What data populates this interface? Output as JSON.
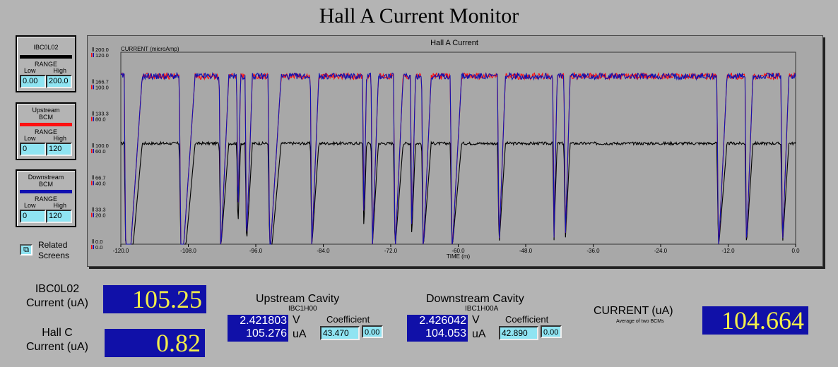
{
  "title": "Hall A Current Monitor",
  "legends": [
    {
      "name": "IBC0L02",
      "color": "#000000",
      "range_label": "RANGE",
      "low_label": "Low",
      "high_label": "High",
      "low": "0.00",
      "high": "200.0"
    },
    {
      "name": "Upstream\nBCM",
      "color": "#ff1010",
      "range_label": "RANGE",
      "low_label": "Low",
      "high_label": "High",
      "low": "0",
      "high": "120"
    },
    {
      "name": "Downstream\nBCM",
      "color": "#1010b0",
      "range_label": "RANGE",
      "low_label": "Low",
      "high_label": "High",
      "low": "0",
      "high": "120"
    }
  ],
  "related": {
    "label_line1": "Related",
    "label_line2": "Screens"
  },
  "chart": {
    "title": "Hall A Current"
  },
  "chart_data": {
    "type": "line",
    "title": "Hall A Current",
    "ylabel": "CURRENT (microAmp)",
    "xlabel": "TIME (m)",
    "xlim": [
      -120.0,
      0.0
    ],
    "x_ticks": [
      "-120.0",
      "-108.0",
      "-96.0",
      "-84.0",
      "-72.0",
      "-60.0",
      "-48.0",
      "-36.0",
      "-24.0",
      "-12.0",
      "0.0"
    ],
    "y_ticks_black": [
      "200.0",
      "166.7",
      "133.3",
      "100.0",
      "66.7",
      "33.3",
      "0.0"
    ],
    "y_ticks_colored": [
      "120.0",
      "100.0",
      "80.0",
      "60.0",
      "40.0",
      "20.0",
      "0.0"
    ],
    "series": [
      {
        "name": "IBC0L02",
        "color": "#000000",
        "on_value": 105,
        "off_value": 0,
        "ylim": [
          0,
          200
        ]
      },
      {
        "name": "Upstream BCM",
        "color": "#ff1010",
        "on_value": 105,
        "off_value": 0,
        "ylim": [
          0,
          120
        ]
      },
      {
        "name": "Downstream BCM",
        "color": "#1010b0",
        "on_value": 105,
        "off_value": 0,
        "ylim": [
          0,
          120
        ]
      }
    ],
    "trips": [
      [
        -119.4,
        -116.2
      ],
      [
        -109.6,
        -106.8
      ],
      [
        -102.5,
        -100.8
      ],
      [
        -99.4,
        -98.7
      ],
      [
        -97.9,
        -96.6
      ],
      [
        -93.8,
        -91.5
      ],
      [
        -86.3,
        -84.8
      ],
      [
        -77.0,
        -76.3
      ],
      [
        -75.5,
        -74.2
      ],
      [
        -71.5,
        -69.8
      ],
      [
        -68.5,
        -67.6
      ],
      [
        -66.5,
        -64.8
      ],
      [
        -61.4,
        -59.4
      ],
      [
        -53.0,
        -51.6
      ],
      [
        -43.2,
        -42.4
      ],
      [
        -41.2,
        -40.1
      ],
      [
        -14.0,
        -12.2
      ],
      [
        -9.0,
        -7.6
      ],
      [
        -2.6,
        -1.2
      ]
    ],
    "grid": false
  },
  "bottom": {
    "ibc_label_1": "IBC0L02",
    "ibc_label_2": "Current (uA)",
    "ibc_value": "105.25",
    "hallc_label_1": "Hall C",
    "hallc_label_2": "Current (uA)",
    "hallc_value": "0.82",
    "upstream": {
      "title": "Upstream Cavity",
      "pv": "IBC1H00",
      "voltage": "2.421803",
      "current": "105.276",
      "v_unit": "V",
      "a_unit": "uA",
      "coef_label": "Coefficient",
      "coef": "43.470",
      "offset": "0.00"
    },
    "downstream": {
      "title": "Downstream Cavity",
      "pv": "IBC1H00A",
      "voltage": "2.426042",
      "current": "104.053",
      "v_unit": "V",
      "a_unit": "uA",
      "coef_label": "Coefficient",
      "coef": "42.890",
      "offset": "0.00"
    },
    "current_label": "CURRENT (uA)",
    "current_sub": "Average of two BCMs",
    "current_value": "104.664"
  }
}
